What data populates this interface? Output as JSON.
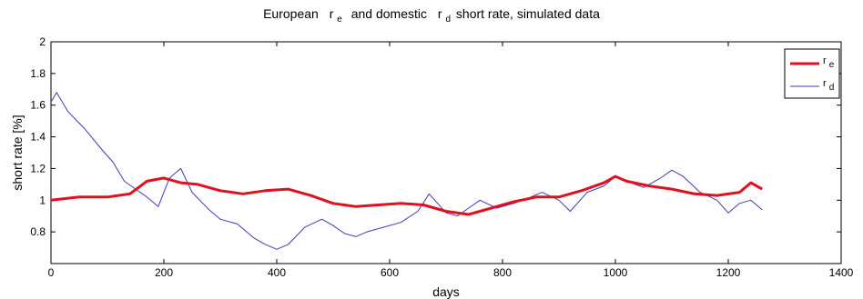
{
  "chart_data": {
    "type": "line",
    "title": {
      "part1": "European",
      "re_base": "r",
      "re_sub": "e",
      "part2": "and domestic",
      "rd_base": "r",
      "rd_sub": "d",
      "part3": "short rate,  simulated data"
    },
    "xlabel": "days",
    "ylabel": "short rate [%]",
    "xlim": [
      0,
      1400
    ],
    "ylim": [
      0.6,
      2.0
    ],
    "xticks": [
      "0",
      "200",
      "400",
      "600",
      "800",
      "1000",
      "1200",
      "1400"
    ],
    "yticks": [
      "0.8",
      "1",
      "1.2",
      "1.4",
      "1.6",
      "1.8",
      "2"
    ],
    "legend_position": "top-right",
    "grid": false,
    "series": [
      {
        "name_base": "r",
        "name_sub": "e",
        "color": "#e0101e",
        "x": [
          0,
          50,
          100,
          140,
          170,
          200,
          230,
          260,
          300,
          340,
          380,
          420,
          460,
          500,
          540,
          580,
          620,
          660,
          700,
          740,
          780,
          820,
          860,
          900,
          940,
          980,
          1000,
          1020,
          1060,
          1100,
          1140,
          1180,
          1220,
          1240,
          1260
        ],
        "y": [
          1.0,
          1.02,
          1.02,
          1.04,
          1.12,
          1.14,
          1.11,
          1.1,
          1.06,
          1.04,
          1.06,
          1.07,
          1.03,
          0.98,
          0.96,
          0.97,
          0.98,
          0.97,
          0.93,
          0.91,
          0.95,
          0.99,
          1.02,
          1.02,
          1.06,
          1.11,
          1.15,
          1.12,
          1.09,
          1.07,
          1.04,
          1.03,
          1.05,
          1.11,
          1.07
        ]
      },
      {
        "name_base": "r",
        "name_sub": "d",
        "color": "#3d3db8",
        "x": [
          0,
          10,
          30,
          60,
          90,
          110,
          130,
          150,
          170,
          190,
          210,
          230,
          250,
          280,
          300,
          330,
          360,
          380,
          400,
          420,
          450,
          480,
          500,
          520,
          540,
          560,
          590,
          620,
          650,
          670,
          700,
          720,
          740,
          760,
          790,
          820,
          850,
          870,
          900,
          920,
          950,
          980,
          1000,
          1020,
          1050,
          1080,
          1100,
          1120,
          1150,
          1180,
          1200,
          1220,
          1240,
          1260
        ],
        "y": [
          1.62,
          1.68,
          1.56,
          1.45,
          1.32,
          1.24,
          1.12,
          1.07,
          1.02,
          0.96,
          1.14,
          1.2,
          1.05,
          0.94,
          0.88,
          0.85,
          0.76,
          0.72,
          0.69,
          0.72,
          0.83,
          0.88,
          0.84,
          0.79,
          0.77,
          0.8,
          0.83,
          0.86,
          0.93,
          1.04,
          0.92,
          0.9,
          0.95,
          1.0,
          0.95,
          0.98,
          1.02,
          1.05,
          1.0,
          0.93,
          1.05,
          1.09,
          1.15,
          1.12,
          1.08,
          1.14,
          1.19,
          1.15,
          1.05,
          1.0,
          0.92,
          0.98,
          1.0,
          0.94
        ]
      }
    ]
  }
}
